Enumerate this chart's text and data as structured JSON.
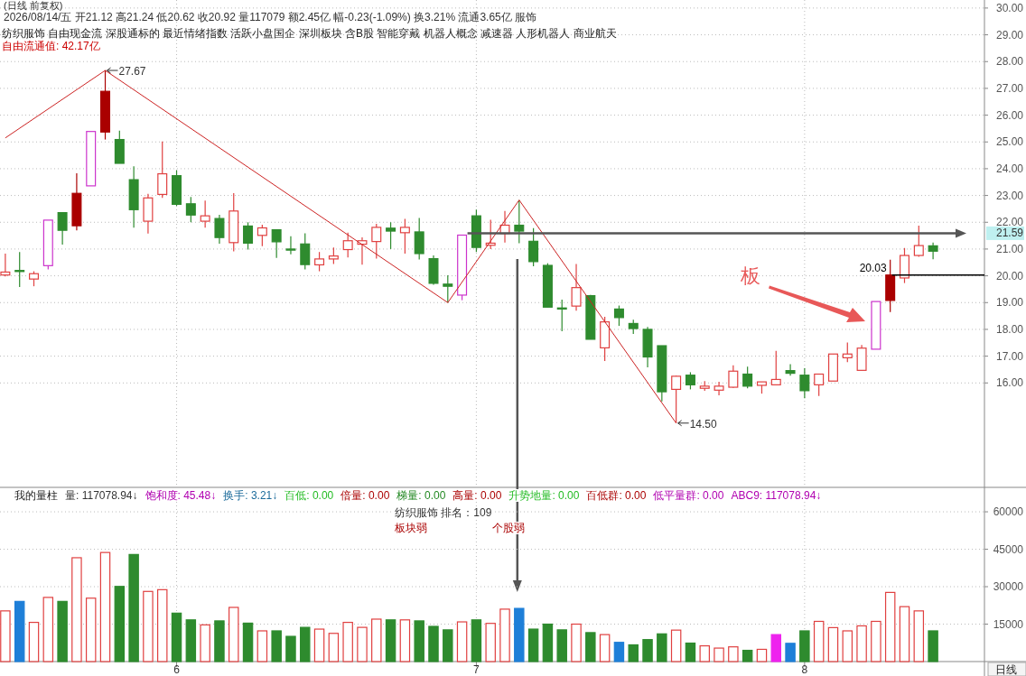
{
  "chart_data": [
    {
      "type": "candlestick",
      "title": "(日线 前复权)",
      "subtitle": "2026/08/14/五 开21.12 高21.24 低20.62 收20.92 量117079 额2.45亿 幅-0.23(-1.09%) 换3.21% 流通3.65亿 服饰",
      "categories": [
        null,
        null,
        null,
        null,
        null,
        null,
        null,
        null,
        null,
        null,
        null,
        null,
        "6",
        null,
        null,
        null,
        null,
        null,
        null,
        null,
        null,
        null,
        null,
        null,
        null,
        null,
        null,
        null,
        null,
        null,
        null,
        null,
        null,
        "7",
        null,
        null,
        null,
        null,
        null,
        null,
        null,
        null,
        null,
        null,
        null,
        null,
        null,
        null,
        null,
        null,
        null,
        null,
        null,
        null,
        null,
        null,
        "8",
        null,
        null,
        null,
        null,
        null,
        null,
        null,
        null,
        null
      ],
      "ohlc": [
        [
          20.03,
          20.83,
          19.98,
          20.14
        ],
        [
          20.2,
          20.89,
          19.58,
          20.17
        ],
        [
          19.88,
          20.17,
          19.61,
          20.08
        ],
        [
          20.38,
          22.08,
          20.24,
          22.08
        ],
        [
          22.36,
          22.36,
          21.17,
          21.7
        ],
        [
          21.87,
          23.83,
          21.7,
          23.08
        ],
        [
          23.36,
          25.39,
          23.36,
          25.39
        ],
        [
          25.37,
          27.67,
          25.09,
          26.89
        ],
        [
          25.09,
          25.42,
          24.2,
          24.2
        ],
        [
          23.59,
          24.09,
          21.8,
          22.47
        ],
        [
          22.04,
          23.06,
          21.58,
          22.91
        ],
        [
          23.04,
          25.02,
          22.91,
          23.81
        ],
        [
          23.74,
          23.94,
          22.61,
          22.67
        ],
        [
          22.69,
          22.94,
          22.0,
          22.27
        ],
        [
          22.04,
          22.81,
          21.8,
          22.24
        ],
        [
          22.14,
          22.28,
          21.2,
          21.43
        ],
        [
          21.24,
          23.09,
          20.91,
          22.42
        ],
        [
          21.86,
          22.0,
          20.98,
          21.22
        ],
        [
          21.51,
          21.91,
          21.11,
          21.79
        ],
        [
          21.72,
          21.72,
          20.67,
          21.27
        ],
        [
          21.0,
          21.48,
          20.8,
          20.96
        ],
        [
          21.19,
          21.59,
          20.24,
          20.42
        ],
        [
          20.41,
          20.89,
          20.17,
          20.63
        ],
        [
          20.63,
          21.06,
          20.44,
          20.74
        ],
        [
          20.98,
          21.61,
          20.69,
          21.31
        ],
        [
          21.18,
          21.44,
          20.42,
          21.31
        ],
        [
          21.28,
          21.94,
          20.64,
          21.81
        ],
        [
          21.78,
          22.0,
          21.0,
          21.67
        ],
        [
          21.61,
          22.13,
          20.83,
          21.81
        ],
        [
          21.64,
          22.16,
          20.61,
          20.83
        ],
        [
          20.64,
          20.76,
          19.67,
          19.72
        ],
        [
          19.69,
          20.02,
          19.0,
          19.61
        ],
        [
          19.28,
          21.52,
          19.09,
          21.52
        ],
        [
          22.24,
          22.47,
          20.89,
          21.06
        ],
        [
          21.14,
          22.09,
          21.0,
          21.22
        ],
        [
          21.58,
          22.42,
          21.24,
          21.89
        ],
        [
          21.89,
          22.83,
          21.22,
          21.67
        ],
        [
          21.29,
          21.78,
          20.36,
          20.53
        ],
        [
          20.39,
          20.47,
          18.83,
          18.83
        ],
        [
          18.8,
          19.11,
          17.93,
          18.76
        ],
        [
          18.87,
          20.44,
          18.7,
          19.56
        ],
        [
          19.26,
          19.29,
          17.63,
          17.63
        ],
        [
          17.31,
          18.47,
          16.82,
          18.28
        ],
        [
          18.76,
          18.89,
          18.13,
          18.44
        ],
        [
          18.22,
          18.36,
          17.83,
          18.03
        ],
        [
          18.0,
          18.09,
          16.58,
          16.97
        ],
        [
          17.39,
          17.39,
          15.31,
          15.67
        ],
        [
          15.76,
          16.27,
          14.5,
          16.25
        ],
        [
          16.29,
          16.4,
          15.76,
          15.93
        ],
        [
          15.8,
          16.07,
          15.71,
          15.88
        ],
        [
          15.73,
          16.04,
          15.54,
          15.88
        ],
        [
          15.84,
          16.66,
          15.82,
          16.44
        ],
        [
          16.33,
          16.61,
          15.8,
          15.88
        ],
        [
          15.91,
          16.04,
          15.6,
          16.04
        ],
        [
          15.93,
          17.2,
          15.93,
          16.13
        ],
        [
          16.46,
          16.7,
          16.27,
          16.36
        ],
        [
          16.29,
          16.55,
          15.43,
          15.71
        ],
        [
          15.93,
          16.33,
          15.51,
          16.33
        ],
        [
          16.07,
          17.08,
          16.07,
          17.08
        ],
        [
          16.94,
          17.51,
          16.78,
          17.08
        ],
        [
          16.47,
          17.42,
          16.47,
          17.3
        ],
        [
          17.26,
          19.04,
          17.26,
          19.04
        ],
        [
          19.08,
          20.6,
          18.65,
          20.03
        ],
        [
          19.92,
          21.04,
          19.73,
          20.76
        ],
        [
          20.76,
          21.87,
          20.71,
          21.13
        ],
        [
          21.12,
          21.24,
          20.62,
          20.92
        ]
      ],
      "colors": [
        "#e04040",
        "#2e8b2e",
        "#e04040",
        "#cc33cc",
        "#2e8b2e",
        "#aa0000",
        "#cc33cc",
        "#aa0000",
        "#2e8b2e",
        "#2e8b2e",
        "#e04040",
        "#e04040",
        "#2e8b2e",
        "#2e8b2e",
        "#e04040",
        "#2e8b2e",
        "#e04040",
        "#2e8b2e",
        "#e04040",
        "#2e8b2e",
        "#2e8b2e",
        "#2e8b2e",
        "#e04040",
        "#e04040",
        "#e04040",
        "#e04040",
        "#e04040",
        "#2e8b2e",
        "#e04040",
        "#2e8b2e",
        "#2e8b2e",
        "#2e8b2e",
        "#cc33cc",
        "#2e8b2e",
        "#e04040",
        "#e04040",
        "#2e8b2e",
        "#2e8b2e",
        "#2e8b2e",
        "#2e8b2e",
        "#e04040",
        "#2e8b2e",
        "#e04040",
        "#2e8b2e",
        "#2e8b2e",
        "#2e8b2e",
        "#2e8b2e",
        "#e04040",
        "#2e8b2e",
        "#e04040",
        "#e04040",
        "#e04040",
        "#2e8b2e",
        "#e04040",
        "#e04040",
        "#2e8b2e",
        "#2e8b2e",
        "#e04040",
        "#e04040",
        "#e04040",
        "#e04040",
        "#cc33cc",
        "#aa0000",
        "#e04040",
        "#e04040",
        "#2e8b2e"
      ],
      "series": [
        {
          "type": "line",
          "color": "#cc2222",
          "values": [
            25.15,
            null,
            null,
            null,
            null,
            null,
            null,
            27.67,
            null,
            null,
            null,
            null,
            null,
            null,
            null,
            null,
            null,
            null,
            null,
            null,
            null,
            null,
            null,
            null,
            null,
            null,
            null,
            null,
            null,
            null,
            null,
            19.0,
            null,
            null,
            null,
            null,
            22.83,
            null,
            null,
            null,
            null,
            null,
            null,
            null,
            null,
            null,
            null,
            14.5,
            null,
            null,
            null,
            null,
            null,
            null,
            null,
            null,
            null,
            null,
            null,
            null,
            null,
            null,
            null,
            null,
            null,
            null
          ]
        }
      ],
      "ylim": [
        12.1,
        30.3
      ],
      "yticks": [
        {
          "value": 16,
          "label": "16.00"
        },
        {
          "value": 17,
          "label": "17.00"
        },
        {
          "value": 18,
          "label": "18.00"
        },
        {
          "value": 19,
          "label": "19.00"
        },
        {
          "value": 20,
          "label": "20.00"
        },
        {
          "value": 21,
          "label": "21.00"
        },
        {
          "value": 22,
          "label": "22.00"
        },
        {
          "value": 23,
          "label": "23.00"
        },
        {
          "value": 24,
          "label": "24.00"
        },
        {
          "value": 25,
          "label": "25.00"
        },
        {
          "value": 26,
          "label": "26.00"
        },
        {
          "value": 27,
          "label": "27.00"
        },
        {
          "value": 28,
          "label": "28.00"
        },
        {
          "value": 29,
          "label": "29.00"
        },
        {
          "value": 30,
          "label": "30.00"
        }
      ],
      "tick_labels": "y",
      "grid": true,
      "ref_lines": [
        {
          "axis": "y",
          "value": 21.59,
          "label": "21.59",
          "color": "#555555"
        },
        {
          "axis": "y",
          "value": 20.03,
          "label": "20.03",
          "color": "#000000"
        }
      ],
      "annotations": [
        "纺织服饰 自由现金流 深股通标的 最近情绪指数 活跃小盘国企 深圳板块 含B股 智能穿戴 机器人概念 减速器 人形机器人 商业航天",
        "自由流通值: 42.17亿",
        "27.67",
        "14.50",
        "板"
      ]
    },
    {
      "type": "bar",
      "title": "我的量柱",
      "categories": [
        null,
        null,
        null,
        null,
        null,
        null,
        null,
        null,
        null,
        null,
        null,
        null,
        "6",
        null,
        null,
        null,
        null,
        null,
        null,
        null,
        null,
        null,
        null,
        null,
        null,
        null,
        null,
        null,
        null,
        null,
        null,
        null,
        null,
        "7",
        null,
        null,
        null,
        null,
        null,
        null,
        null,
        null,
        null,
        null,
        null,
        null,
        null,
        null,
        null,
        null,
        null,
        null,
        null,
        null,
        null,
        null,
        "8",
        null,
        null,
        null,
        null,
        null,
        null,
        null,
        null,
        null
      ],
      "values": [
        20300,
        24100,
        15700,
        25700,
        24100,
        41600,
        25400,
        43700,
        30100,
        42900,
        28100,
        28800,
        19400,
        16700,
        14700,
        16300,
        21700,
        15400,
        12300,
        12300,
        10100,
        13700,
        13000,
        11300,
        15700,
        13700,
        17000,
        16700,
        16700,
        16300,
        14100,
        12700,
        15900,
        16700,
        15300,
        21000,
        21300,
        13000,
        15000,
        12700,
        15000,
        11600,
        10800,
        7700,
        6700,
        8800,
        11100,
        12600,
        7400,
        6300,
        5400,
        5900,
        4500,
        4900,
        10800,
        7300,
        12300,
        16100,
        13600,
        12300,
        14300,
        16100,
        27700,
        22000,
        20300,
        12300
      ],
      "colors": [
        "#e04040",
        "#1e7fd8",
        "#e04040",
        "#e04040",
        "#2e8b2e",
        "#e04040",
        "#e04040",
        "#e04040",
        "#2e8b2e",
        "#2e8b2e",
        "#e04040",
        "#e04040",
        "#2e8b2e",
        "#2e8b2e",
        "#e04040",
        "#2e8b2e",
        "#e04040",
        "#2e8b2e",
        "#e04040",
        "#2e8b2e",
        "#2e8b2e",
        "#2e8b2e",
        "#e04040",
        "#e04040",
        "#e04040",
        "#e04040",
        "#e04040",
        "#2e8b2e",
        "#e04040",
        "#2e8b2e",
        "#2e8b2e",
        "#2e8b2e",
        "#e04040",
        "#2e8b2e",
        "#e04040",
        "#e04040",
        "#1e7fd8",
        "#2e8b2e",
        "#2e8b2e",
        "#2e8b2e",
        "#e04040",
        "#2e8b2e",
        "#e04040",
        "#1e7fd8",
        "#2e8b2e",
        "#2e8b2e",
        "#2e8b2e",
        "#e04040",
        "#2e8b2e",
        "#e04040",
        "#e04040",
        "#e04040",
        "#2e8b2e",
        "#e04040",
        "#ee22ee",
        "#1e7fd8",
        "#2e8b2e",
        "#e04040",
        "#e04040",
        "#e04040",
        "#e04040",
        "#e04040",
        "#e04040",
        "#e04040",
        "#e04040",
        "#2e8b2e"
      ],
      "ylim": [
        0,
        64000
      ],
      "yticks": [
        15000,
        30000,
        45000,
        60000
      ],
      "grid": true,
      "annotations": [
        "量: 117078.94↓",
        "饱和度: 45.48↓",
        "换手: 3.21↓",
        "百低: 0.00",
        "倍量: 0.00",
        "梯量: 0.00",
        "高量: 0.00",
        "升势地量: 0.00",
        "百低群: 0.00",
        "低平量群: 0.00",
        "ABC9: 117078.94↓",
        "纺织服饰 排名：109",
        "板块弱",
        "个股弱",
        "日线"
      ]
    }
  ]
}
